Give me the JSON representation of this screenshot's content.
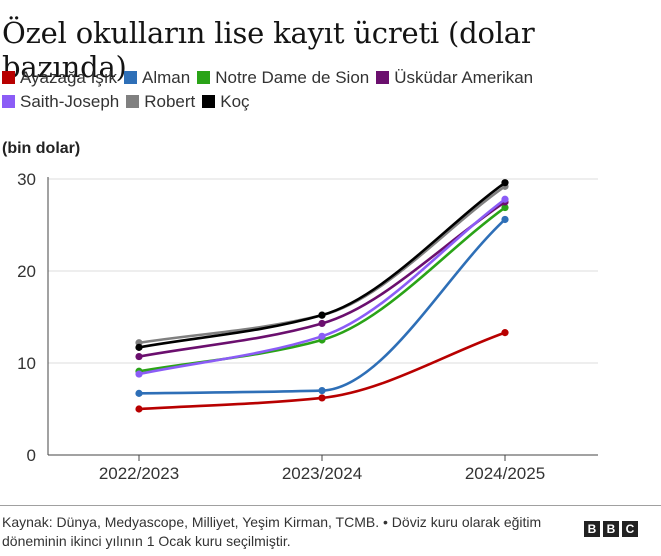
{
  "chart_data": {
    "type": "line",
    "title": "Özel okulların lise kayıt ücreti (dolar bazında)",
    "ylabel": "(bin dolar)",
    "categories": [
      "2022/2023",
      "2023/2024",
      "2024/2025"
    ],
    "ylim": [
      0,
      30
    ],
    "yticks": [
      0,
      10,
      20,
      30
    ],
    "grid": "horizontal",
    "legend_position": "top",
    "series": [
      {
        "name": "Ayazağa Işık",
        "color": "#b80000",
        "values": [
          5.0,
          6.2,
          13.3
        ]
      },
      {
        "name": "Alman",
        "color": "#2e6fb7",
        "values": [
          6.7,
          7.0,
          25.6
        ]
      },
      {
        "name": "Notre Dame de Sion",
        "color": "#2aa317",
        "values": [
          9.1,
          12.5,
          26.9
        ]
      },
      {
        "name": "Üsküdar Amerikan",
        "color": "#6b0f6e",
        "values": [
          10.7,
          14.3,
          27.5
        ]
      },
      {
        "name": "Saith-Joseph",
        "color": "#8b5cf6",
        "values": [
          8.8,
          12.9,
          27.8
        ]
      },
      {
        "name": "Robert",
        "color": "#808080",
        "values": [
          12.2,
          15.2,
          29.2
        ]
      },
      {
        "name": "Koç",
        "color": "#000000",
        "values": [
          11.7,
          15.2,
          29.6
        ]
      }
    ]
  },
  "footer": {
    "source": "Kaynak: Dünya, Medyascope, Milliyet, Yeşim Kirman, TCMB. • Döviz kuru olarak eğitim döneminin ikinci yılının 1 Ocak kuru seçilmiştir.",
    "logo": [
      "B",
      "B",
      "C"
    ]
  }
}
